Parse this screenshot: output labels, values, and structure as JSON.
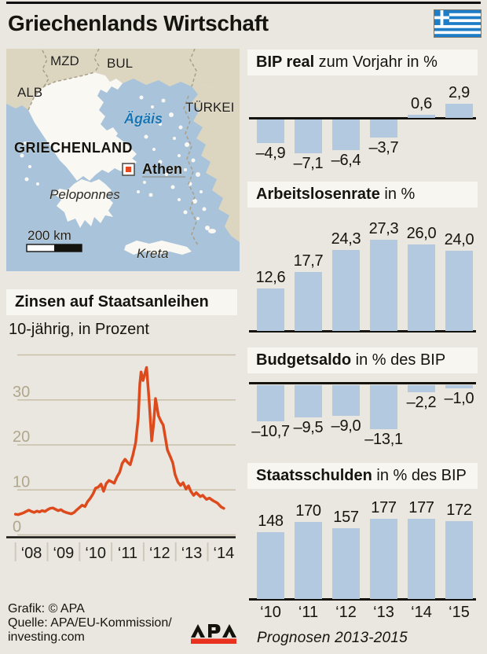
{
  "title": "Griechenlands Wirtschaft",
  "map": {
    "labels": {
      "mzd": "MZD",
      "bul": "BUL",
      "alb": "ALB",
      "tuerkei": "TÜRKEI",
      "aegaeis": "Ägäis",
      "griechenland": "GRIECHENLAND",
      "athen": "Athen",
      "peloponnes": "Peloponnes",
      "kreta": "Kreta",
      "scale": "200 km"
    }
  },
  "chart_data": [
    {
      "id": "bond_yields",
      "type": "line",
      "title": "Zinsen auf Staatsanleihen",
      "subtitle": "10-jährig, in Prozent",
      "xlabel": "",
      "ylabel": "Prozent",
      "ylim": [
        0,
        40
      ],
      "yticks": [
        0,
        10,
        20,
        30
      ],
      "gridlines": [
        0,
        10,
        20,
        30,
        40
      ],
      "grid": true,
      "x_ticks": [
        "‘08",
        "‘09",
        "‘10",
        "‘11",
        "‘12",
        "‘13",
        "‘14"
      ],
      "points": [
        [
          2008.0,
          4.6
        ],
        [
          2008.08,
          4.5
        ],
        [
          2008.17,
          4.7
        ],
        [
          2008.25,
          4.9
        ],
        [
          2008.33,
          5.2
        ],
        [
          2008.42,
          5.5
        ],
        [
          2008.5,
          5.2
        ],
        [
          2008.58,
          5.0
        ],
        [
          2008.67,
          5.3
        ],
        [
          2008.75,
          5.1
        ],
        [
          2008.83,
          5.4
        ],
        [
          2008.92,
          5.2
        ],
        [
          2009.0,
          5.6
        ],
        [
          2009.08,
          5.9
        ],
        [
          2009.17,
          6.0
        ],
        [
          2009.25,
          5.7
        ],
        [
          2009.33,
          5.4
        ],
        [
          2009.42,
          5.6
        ],
        [
          2009.5,
          5.2
        ],
        [
          2009.58,
          5.0
        ],
        [
          2009.67,
          4.8
        ],
        [
          2009.75,
          4.7
        ],
        [
          2009.83,
          5.0
        ],
        [
          2009.92,
          5.6
        ],
        [
          2010.0,
          6.1
        ],
        [
          2010.08,
          6.6
        ],
        [
          2010.17,
          6.3
        ],
        [
          2010.25,
          7.4
        ],
        [
          2010.33,
          8.1
        ],
        [
          2010.42,
          9.1
        ],
        [
          2010.5,
          10.4
        ],
        [
          2010.58,
          10.6
        ],
        [
          2010.67,
          11.3
        ],
        [
          2010.75,
          9.7
        ],
        [
          2010.83,
          11.4
        ],
        [
          2010.92,
          12.1
        ],
        [
          2011.0,
          11.8
        ],
        [
          2011.08,
          11.5
        ],
        [
          2011.17,
          12.9
        ],
        [
          2011.25,
          13.9
        ],
        [
          2011.33,
          15.9
        ],
        [
          2011.42,
          16.8
        ],
        [
          2011.5,
          16.1
        ],
        [
          2011.58,
          15.6
        ],
        [
          2011.67,
          17.9
        ],
        [
          2011.75,
          20.5
        ],
        [
          2011.83,
          26.0
        ],
        [
          2011.88,
          33.5
        ],
        [
          2011.92,
          36.2
        ],
        [
          2011.98,
          34.3
        ],
        [
          2012.09,
          37.2
        ],
        [
          2012.17,
          30.0
        ],
        [
          2012.25,
          20.9
        ],
        [
          2012.31,
          24.5
        ],
        [
          2012.37,
          30.3
        ],
        [
          2012.46,
          26.5
        ],
        [
          2012.54,
          25.3
        ],
        [
          2012.61,
          24.4
        ],
        [
          2012.74,
          18.9
        ],
        [
          2012.83,
          17.4
        ],
        [
          2012.91,
          16.0
        ],
        [
          2012.98,
          13.4
        ],
        [
          2013.07,
          11.7
        ],
        [
          2013.15,
          11.0
        ],
        [
          2013.23,
          11.6
        ],
        [
          2013.32,
          10.2
        ],
        [
          2013.4,
          10.9
        ],
        [
          2013.47,
          9.7
        ],
        [
          2013.56,
          8.8
        ],
        [
          2013.64,
          9.4
        ],
        [
          2013.77,
          8.5
        ],
        [
          2013.84,
          8.8
        ],
        [
          2013.96,
          7.9
        ],
        [
          2014.05,
          8.2
        ],
        [
          2014.17,
          7.6
        ],
        [
          2014.3,
          7.1
        ],
        [
          2014.42,
          6.2
        ],
        [
          2014.5,
          5.9
        ]
      ]
    },
    {
      "id": "gdp_real",
      "type": "bar",
      "title_bold": "BIP real",
      "title_rest": " zum Vorjahr in %",
      "categories": [
        "‘10",
        "‘11",
        "‘12",
        "‘13",
        "‘14",
        "‘15"
      ],
      "categories_shown": false,
      "values": [
        -4.9,
        -7.1,
        -6.4,
        -3.7,
        0.6,
        2.9
      ],
      "labels": [
        "–4,9",
        "–7,1",
        "–6,4",
        "–3,7",
        "0,6",
        "2,9"
      ]
    },
    {
      "id": "unemployment",
      "type": "bar",
      "title_bold": "Arbeitslosenrate",
      "title_rest": " in %",
      "categories": [
        "‘10",
        "‘11",
        "‘12",
        "‘13",
        "‘14",
        "‘15"
      ],
      "categories_shown": false,
      "values": [
        12.6,
        17.7,
        24.3,
        27.3,
        26.0,
        24.0
      ],
      "labels": [
        "12,6",
        "17,7",
        "24,3",
        "27,3",
        "26,0",
        "24,0"
      ]
    },
    {
      "id": "budget_balance",
      "type": "bar",
      "title_bold": "Budgetsaldo",
      "title_rest": " in % des BIP",
      "categories": [
        "‘10",
        "‘11",
        "‘12",
        "‘13",
        "‘14",
        "‘15"
      ],
      "categories_shown": false,
      "values": [
        -10.7,
        -9.5,
        -9.0,
        -13.1,
        -2.2,
        -1.0
      ],
      "labels": [
        "–10,7",
        "–9,5",
        "–9,0",
        "–13,1",
        "–2,2",
        "–1,0"
      ]
    },
    {
      "id": "public_debt",
      "type": "bar",
      "title_bold": "Staatsschulden",
      "title_rest": " in % des BIP",
      "categories": [
        "‘10",
        "‘11",
        "‘12",
        "‘13",
        "‘14",
        "‘15"
      ],
      "categories_shown": true,
      "values": [
        148,
        170,
        157,
        177,
        177,
        172
      ],
      "labels": [
        "148",
        "170",
        "157",
        "177",
        "177",
        "172"
      ]
    }
  ],
  "footer": {
    "credit": "Grafik: © APA",
    "source1": "Quelle: APA/EU-Kommission/",
    "source2": "investing.com",
    "logo_text": "APA",
    "note": "Prognosen 2013-2015"
  },
  "colors": {
    "background": "#eae6e0",
    "header_bar": "#f8f6f0",
    "bar_blue": "#b2c9df",
    "line_red": "#dd4a1c",
    "sea_blue": "#a8c3da",
    "land_neighbor": "#dcd6c0",
    "land_greece": "#faf8f2",
    "grid_tan": "#c8bfa8",
    "axis_label_tan": "#b0a78c",
    "apa_red": "#e8321f",
    "aegean_label_blue": "#1673b4",
    "athens_marker_red": "#e8481f",
    "text": "#16140f"
  }
}
